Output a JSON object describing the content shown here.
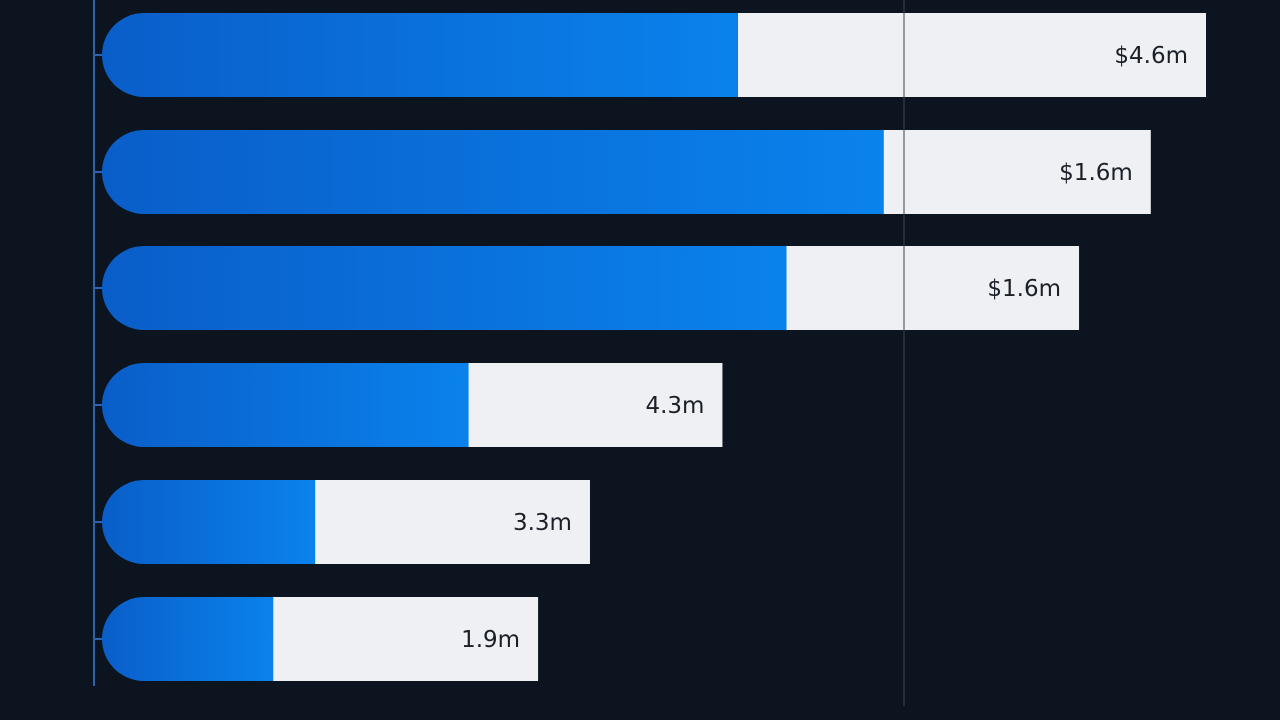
{
  "chart_data": {
    "type": "bar",
    "orientation": "horizontal",
    "title": "",
    "xlabel": "",
    "ylabel": "",
    "grid": false,
    "legend": "none",
    "bars": [
      {
        "label": "$4.6m",
        "filled": 0.576,
        "total": 1.0
      },
      {
        "label": "$1.6m",
        "filled": 0.708,
        "total": 0.95
      },
      {
        "label": "$1.6m",
        "filled": 0.62,
        "total": 0.885
      },
      {
        "label": "4.3m",
        "filled": 0.332,
        "total": 0.562
      },
      {
        "label": "3.3m",
        "filled": 0.193,
        "total": 0.442
      },
      {
        "label": "1.9m",
        "filled": 0.155,
        "total": 0.395
      }
    ]
  },
  "colors": {
    "background": "#0c1420",
    "bar_fill_start": "#0a5ec9",
    "bar_fill_end": "#0a82ec",
    "bar_remainder": "#eef0f3",
    "value_text": "#1a1f28",
    "axis": "#2d62b0",
    "reference_line": "#3a4350"
  }
}
